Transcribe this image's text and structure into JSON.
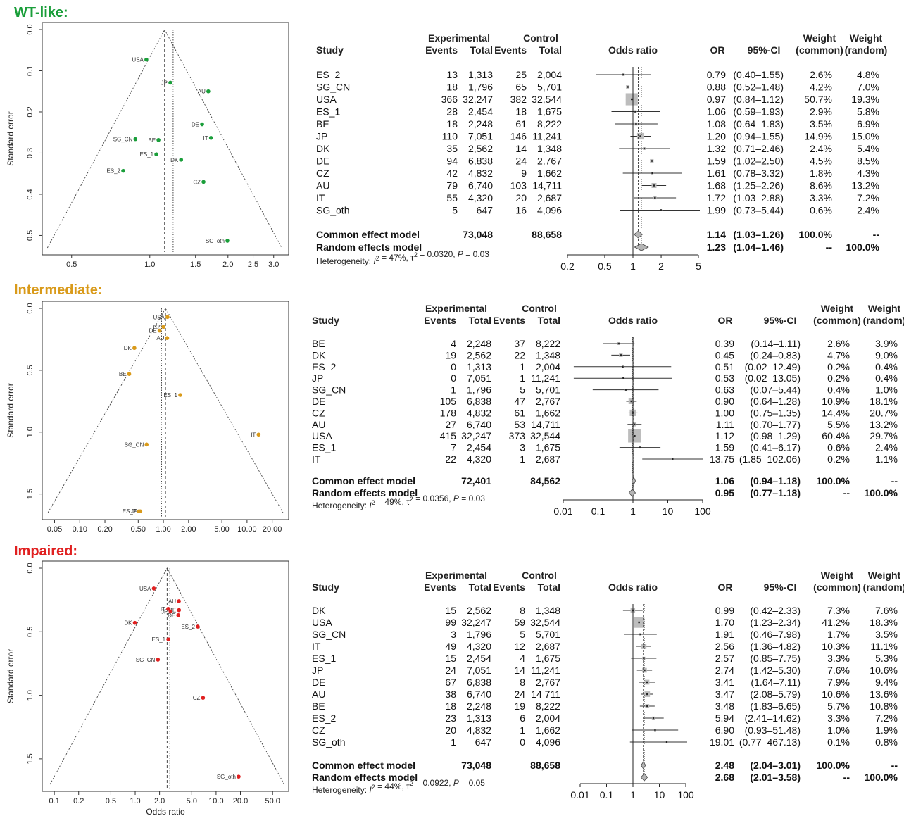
{
  "axis_labels": {
    "y": "Standard error",
    "x": "Odds ratio"
  },
  "col_labels": {
    "study": "Study",
    "experimental": "Experimental",
    "control": "Control",
    "events": "Events",
    "total": "Total",
    "odds_ratio": "Odds ratio",
    "or": "OR",
    "ci": "95%-CI",
    "weight": "Weight",
    "common": "(common)",
    "random": "(random)"
  },
  "panels": [
    {
      "title": "WT-like:",
      "color": "#1a9e3a",
      "rows": [
        [
          "ES_2",
          "13",
          "1,313",
          "25",
          "2,004",
          "0.79",
          "(0.40–1.55)",
          "2.6%",
          "4.8%"
        ],
        [
          "SG_CN",
          "18",
          "1,796",
          "65",
          "5,701",
          "0.88",
          "(0.52–1.48)",
          "4.2%",
          "7.0%"
        ],
        [
          "USA",
          "366",
          "32,247",
          "382",
          "32,544",
          "0.97",
          "(0.84–1.12)",
          "50.7%",
          "19.3%"
        ],
        [
          "ES_1",
          "28",
          "2,454",
          "18",
          "1,675",
          "1.06",
          "(0.59–1.93)",
          "2.9%",
          "5.8%"
        ],
        [
          "BE",
          "18",
          "2,248",
          "61",
          "8,222",
          "1.08",
          "(0.64–1.83)",
          "3.5%",
          "6.9%"
        ],
        [
          "JP",
          "110",
          "7,051",
          "146",
          "11,241",
          "1.20",
          "(0.94–1.55)",
          "14.9%",
          "15.0%"
        ],
        [
          "DK",
          "35",
          "2,562",
          "14",
          "1,348",
          "1.32",
          "(0.71–2.46)",
          "2.4%",
          "5.4%"
        ],
        [
          "DE",
          "94",
          "6,838",
          "24",
          "2,767",
          "1.59",
          "(1.02–2.50)",
          "4.5%",
          "8.5%"
        ],
        [
          "CZ",
          "42",
          "4,832",
          "9",
          "1,662",
          "1.61",
          "(0.78–3.32)",
          "1.8%",
          "4.3%"
        ],
        [
          "AU",
          "79",
          "6,740",
          "103",
          "14,711",
          "1.68",
          "(1.25–2.26)",
          "8.6%",
          "13.2%"
        ],
        [
          "IT",
          "55",
          "4,320",
          "20",
          "2,687",
          "1.72",
          "(1.03–2.88)",
          "3.3%",
          "7.2%"
        ],
        [
          "SG_oth",
          "5",
          "647",
          "16",
          "4,096",
          "1.99",
          "(0.73–5.44)",
          "0.6%",
          "2.4%"
        ]
      ],
      "common": [
        "Common effect model",
        "73,048",
        "88,658",
        "1.14",
        "(1.03–1.26)",
        "100.0%",
        "--"
      ],
      "random": [
        "Random effects model",
        "1.23",
        "(1.04–1.46)",
        "--",
        "100.0%"
      ],
      "heterogeneity": {
        "prefix": "Heterogeneity: ",
        "i": "I",
        "sup": "2",
        "mid": " = 47%, τ",
        "tau": " = 0.0320, ",
        "p": "P",
        "pval": " = 0.03"
      },
      "forest_ticks": [
        "0.2",
        "0.5",
        "1",
        "2",
        "5"
      ],
      "funnel_xticks": [
        "0.5",
        "1.0",
        "1.5",
        "2.0",
        "2.5",
        "3.0"
      ],
      "funnel_yticks": [
        "0.0",
        "0.1",
        "0.2",
        "0.3",
        "0.4",
        "0.5"
      ]
    },
    {
      "title": "Intermediate:",
      "color": "#d99a1a",
      "rows": [
        [
          "BE",
          "4",
          "2,248",
          "37",
          "8,222",
          "0.39",
          "(0.14–1.11)",
          "2.6%",
          "3.9%"
        ],
        [
          "DK",
          "19",
          "2,562",
          "22",
          "1,348",
          "0.45",
          "(0.24–0.83)",
          "4.7%",
          "9.0%"
        ],
        [
          "ES_2",
          "0",
          "1,313",
          "1",
          "2,004",
          "0.51",
          "(0.02–12.49)",
          "0.2%",
          "0.4%"
        ],
        [
          "JP",
          "0",
          "7,051",
          "1",
          "11,241",
          "0.53",
          "(0.02–13.05)",
          "0.2%",
          "0.4%"
        ],
        [
          "SG_CN",
          "1",
          "1,796",
          "5",
          "5,701",
          "0.63",
          "(0.07–5.44)",
          "0.4%",
          "1.0%"
        ],
        [
          "DE",
          "105",
          "6,838",
          "47",
          "2,767",
          "0.90",
          "(0.64–1.28)",
          "10.9%",
          "18.1%"
        ],
        [
          "CZ",
          "178",
          "4,832",
          "61",
          "1,662",
          "1.00",
          "(0.75–1.35)",
          "14.4%",
          "20.7%"
        ],
        [
          "AU",
          "27",
          "6,740",
          "53",
          "14,711",
          "1.11",
          "(0.70–1.77)",
          "5.5%",
          "13.2%"
        ],
        [
          "USA",
          "415",
          "32,247",
          "373",
          "32,544",
          "1.12",
          "(0.98–1.29)",
          "60.4%",
          "29.7%"
        ],
        [
          "ES_1",
          "7",
          "2,454",
          "3",
          "1,675",
          "1.59",
          "(0.41–6.17)",
          "0.6%",
          "2.4%"
        ],
        [
          "IT",
          "22",
          "4,320",
          "1",
          "2,687",
          "13.75",
          "(1.85–102.06)",
          "0.2%",
          "1.1%"
        ]
      ],
      "common": [
        "Common effect model",
        "72,401",
        "84,562",
        "1.06",
        "(0.94–1.18)",
        "100.0%",
        "--"
      ],
      "random": [
        "Random effects model",
        "0.95",
        "(0.77–1.18)",
        "--",
        "100.0%"
      ],
      "heterogeneity": {
        "prefix": "Heterogeneity: ",
        "i": "I",
        "sup": "2",
        "mid": " = 49%, τ",
        "tau": " = 0.0356, ",
        "p": "P",
        "pval": " = 0.03"
      },
      "forest_ticks": [
        "0.01",
        "0.1",
        "1",
        "10",
        "100"
      ],
      "funnel_xticks": [
        "0.05",
        "0.10",
        "0.20",
        "0.50",
        "1.00",
        "2.00",
        "5.00",
        "10.00",
        "20.00"
      ],
      "funnel_yticks": [
        "0.0",
        "0.5",
        "1.0",
        "1.5"
      ]
    },
    {
      "title": "Impaired:",
      "color": "#e02020",
      "rows": [
        [
          "DK",
          "15",
          "2,562",
          "8",
          "1,348",
          "0.99",
          "(0.42–2.33)",
          "7.3%",
          "7.6%"
        ],
        [
          "USA",
          "99",
          "32,247",
          "59",
          "32,544",
          "1.70",
          "(1.23–2.34)",
          "41.2%",
          "18.3%"
        ],
        [
          "SG_CN",
          "3",
          "1,796",
          "5",
          "5,701",
          "1.91",
          "(0.46–7.98)",
          "1.7%",
          "3.5%"
        ],
        [
          "IT",
          "49",
          "4,320",
          "12",
          "2,687",
          "2.56",
          "(1.36–4.82)",
          "10.3%",
          "11.1%"
        ],
        [
          "ES_1",
          "15",
          "2,454",
          "4",
          "1,675",
          "2.57",
          "(0.85–7.75)",
          "3.3%",
          "5.3%"
        ],
        [
          "JP",
          "24",
          "7,051",
          "14",
          "11,241",
          "2.74",
          "(1.42–5.30)",
          "7.6%",
          "10.6%"
        ],
        [
          "DE",
          "67",
          "6,838",
          "8",
          "2,767",
          "3.41",
          "(1.64–7.11)",
          "7.9%",
          "9.4%"
        ],
        [
          "AU",
          "38",
          "6,740",
          "24",
          "14 711",
          "3.47",
          "(2.08–5.79)",
          "10.6%",
          "13.6%"
        ],
        [
          "BE",
          "18",
          "2,248",
          "19",
          "8,222",
          "3.48",
          "(1.83–6.65)",
          "5.7%",
          "10.8%"
        ],
        [
          "ES_2",
          "23",
          "1,313",
          "6",
          "2,004",
          "5.94",
          "(2.41–14.62)",
          "3.3%",
          "7.2%"
        ],
        [
          "CZ",
          "20",
          "4,832",
          "1",
          "1,662",
          "6.90",
          "(0.93–51.48)",
          "1.0%",
          "1.9%"
        ],
        [
          "SG_oth",
          "1",
          "647",
          "0",
          "4,096",
          "19.01",
          "(0.77–467.13)",
          "0.1%",
          "0.8%"
        ]
      ],
      "common": [
        "Common effect model",
        "73,048",
        "88,658",
        "2.48",
        "(2.04–3.01)",
        "100.0%",
        "--"
      ],
      "random": [
        "Random effects model",
        "2.68",
        "(2.01–3.58)",
        "--",
        "100.0%"
      ],
      "heterogeneity": {
        "prefix": "Heterogeneity: ",
        "i": "I",
        "sup": "2",
        "mid": " = 44%, τ",
        "tau": " = 0.0922, ",
        "p": "P",
        "pval": " = 0.05"
      },
      "forest_ticks": [
        "0.01",
        "0.1",
        "1",
        "10",
        "100"
      ],
      "funnel_xticks": [
        "0.1",
        "0.2",
        "0.5",
        "1.0",
        "2.0",
        "5.0",
        "10.0",
        "20.0",
        "50.0"
      ],
      "funnel_yticks": [
        "0.0",
        "0.5",
        "1.0",
        "1.5"
      ]
    }
  ],
  "chart_data": [
    {
      "type": "scatter",
      "panel": "WT-like funnel plot",
      "xlabel": "",
      "ylabel": "Standard error",
      "x_scale": "log",
      "xlim": [
        0.4,
        3.3
      ],
      "ylim": [
        0.53,
        0.0
      ],
      "common_estimate": 1.14,
      "random_estimate": 1.23,
      "points": [
        {
          "label": "USA",
          "x": 0.97,
          "y": 0.073
        },
        {
          "label": "JP",
          "x": 1.2,
          "y": 0.129
        },
        {
          "label": "AU",
          "x": 1.68,
          "y": 0.15
        },
        {
          "label": "DE",
          "x": 1.59,
          "y": 0.23
        },
        {
          "label": "IT",
          "x": 1.72,
          "y": 0.263
        },
        {
          "label": "SG_CN",
          "x": 0.88,
          "y": 0.266
        },
        {
          "label": "BE",
          "x": 1.08,
          "y": 0.268
        },
        {
          "label": "ES_1",
          "x": 1.06,
          "y": 0.303
        },
        {
          "label": "DK",
          "x": 1.32,
          "y": 0.316
        },
        {
          "label": "ES_2",
          "x": 0.79,
          "y": 0.343
        },
        {
          "label": "CZ",
          "x": 1.61,
          "y": 0.37
        },
        {
          "label": "SG_oth",
          "x": 1.99,
          "y": 0.513
        }
      ]
    },
    {
      "type": "scatter",
      "panel": "Intermediate funnel plot",
      "xlabel": "",
      "ylabel": "Standard error",
      "x_scale": "log",
      "xlim": [
        0.04,
        28
      ],
      "ylim": [
        1.65,
        0.0
      ],
      "common_estimate": 1.06,
      "random_estimate": 0.95,
      "points": [
        {
          "label": "USA",
          "x": 1.12,
          "y": 0.07
        },
        {
          "label": "CZ",
          "x": 1.0,
          "y": 0.15
        },
        {
          "label": "DE",
          "x": 0.9,
          "y": 0.18
        },
        {
          "label": "AU",
          "x": 1.11,
          "y": 0.24
        },
        {
          "label": "DK",
          "x": 0.45,
          "y": 0.32
        },
        {
          "label": "BE",
          "x": 0.39,
          "y": 0.53
        },
        {
          "label": "ES_1",
          "x": 1.59,
          "y": 0.7
        },
        {
          "label": "IT",
          "x": 13.75,
          "y": 1.02
        },
        {
          "label": "SG_CN",
          "x": 0.63,
          "y": 1.1
        },
        {
          "label": "ES_2",
          "x": 0.51,
          "y": 1.64
        },
        {
          "label": "JP",
          "x": 0.53,
          "y": 1.64
        }
      ]
    },
    {
      "type": "scatter",
      "panel": "Impaired funnel plot",
      "xlabel": "Odds ratio",
      "ylabel": "Standard error",
      "x_scale": "log",
      "xlim": [
        0.08,
        70
      ],
      "ylim": [
        1.7,
        0.0
      ],
      "common_estimate": 2.48,
      "random_estimate": 2.68,
      "points": [
        {
          "label": "USA",
          "x": 1.7,
          "y": 0.16
        },
        {
          "label": "AU",
          "x": 3.47,
          "y": 0.26
        },
        {
          "label": "BE",
          "x": 3.48,
          "y": 0.33
        },
        {
          "label": "JP",
          "x": 2.74,
          "y": 0.34
        },
        {
          "label": "IT",
          "x": 2.56,
          "y": 0.32
        },
        {
          "label": "DE",
          "x": 3.41,
          "y": 0.37
        },
        {
          "label": "DK",
          "x": 0.99,
          "y": 0.43
        },
        {
          "label": "ES_2",
          "x": 5.94,
          "y": 0.46
        },
        {
          "label": "ES_1",
          "x": 2.57,
          "y": 0.56
        },
        {
          "label": "SG_CN",
          "x": 1.91,
          "y": 0.72
        },
        {
          "label": "CZ",
          "x": 6.9,
          "y": 1.02
        },
        {
          "label": "SG_oth",
          "x": 19.01,
          "y": 1.64
        }
      ]
    },
    {
      "type": "forest",
      "panel": "WT-like forest plot",
      "x_scale": "log",
      "xlim": [
        0.2,
        5
      ],
      "studies": [
        {
          "study": "ES_2",
          "or": 0.79,
          "lo": 0.4,
          "hi": 1.55,
          "w": 2.6
        },
        {
          "study": "SG_CN",
          "or": 0.88,
          "lo": 0.52,
          "hi": 1.48,
          "w": 4.2
        },
        {
          "study": "USA",
          "or": 0.97,
          "lo": 0.84,
          "hi": 1.12,
          "w": 50.7
        },
        {
          "study": "ES_1",
          "or": 1.06,
          "lo": 0.59,
          "hi": 1.93,
          "w": 2.9
        },
        {
          "study": "BE",
          "or": 1.08,
          "lo": 0.64,
          "hi": 1.83,
          "w": 3.5
        },
        {
          "study": "JP",
          "or": 1.2,
          "lo": 0.94,
          "hi": 1.55,
          "w": 14.9
        },
        {
          "study": "DK",
          "or": 1.32,
          "lo": 0.71,
          "hi": 2.46,
          "w": 2.4
        },
        {
          "study": "DE",
          "or": 1.59,
          "lo": 1.02,
          "hi": 2.5,
          "w": 4.5
        },
        {
          "study": "CZ",
          "or": 1.61,
          "lo": 0.78,
          "hi": 3.32,
          "w": 1.8
        },
        {
          "study": "AU",
          "or": 1.68,
          "lo": 1.25,
          "hi": 2.26,
          "w": 8.6
        },
        {
          "study": "IT",
          "or": 1.72,
          "lo": 1.03,
          "hi": 2.88,
          "w": 3.3
        },
        {
          "study": "SG_oth",
          "or": 1.99,
          "lo": 0.73,
          "hi": 5.44,
          "w": 0.6
        }
      ],
      "common": {
        "or": 1.14,
        "lo": 1.03,
        "hi": 1.26
      },
      "random": {
        "or": 1.23,
        "lo": 1.04,
        "hi": 1.46
      }
    },
    {
      "type": "forest",
      "panel": "Intermediate forest plot",
      "x_scale": "log",
      "xlim": [
        0.01,
        100
      ],
      "studies": [
        {
          "study": "BE",
          "or": 0.39,
          "lo": 0.14,
          "hi": 1.11,
          "w": 2.6
        },
        {
          "study": "DK",
          "or": 0.45,
          "lo": 0.24,
          "hi": 0.83,
          "w": 4.7
        },
        {
          "study": "ES_2",
          "or": 0.51,
          "lo": 0.02,
          "hi": 12.49,
          "w": 0.2
        },
        {
          "study": "JP",
          "or": 0.53,
          "lo": 0.02,
          "hi": 13.05,
          "w": 0.2
        },
        {
          "study": "SG_CN",
          "or": 0.63,
          "lo": 0.07,
          "hi": 5.44,
          "w": 0.4
        },
        {
          "study": "DE",
          "or": 0.9,
          "lo": 0.64,
          "hi": 1.28,
          "w": 10.9
        },
        {
          "study": "CZ",
          "or": 1.0,
          "lo": 0.75,
          "hi": 1.35,
          "w": 14.4
        },
        {
          "study": "AU",
          "or": 1.11,
          "lo": 0.7,
          "hi": 1.77,
          "w": 5.5
        },
        {
          "study": "USA",
          "or": 1.12,
          "lo": 0.98,
          "hi": 1.29,
          "w": 60.4
        },
        {
          "study": "ES_1",
          "or": 1.59,
          "lo": 0.41,
          "hi": 6.17,
          "w": 0.6
        },
        {
          "study": "IT",
          "or": 13.75,
          "lo": 1.85,
          "hi": 102.06,
          "w": 0.2
        }
      ],
      "common": {
        "or": 1.06,
        "lo": 0.94,
        "hi": 1.18
      },
      "random": {
        "or": 0.95,
        "lo": 0.77,
        "hi": 1.18
      }
    },
    {
      "type": "forest",
      "panel": "Impaired forest plot",
      "x_scale": "log",
      "xlim": [
        0.01,
        100
      ],
      "studies": [
        {
          "study": "DK",
          "or": 0.99,
          "lo": 0.42,
          "hi": 2.33,
          "w": 7.3
        },
        {
          "study": "USA",
          "or": 1.7,
          "lo": 1.23,
          "hi": 2.34,
          "w": 41.2
        },
        {
          "study": "SG_CN",
          "or": 1.91,
          "lo": 0.46,
          "hi": 7.98,
          "w": 1.7
        },
        {
          "study": "IT",
          "or": 2.56,
          "lo": 1.36,
          "hi": 4.82,
          "w": 10.3
        },
        {
          "study": "ES_1",
          "or": 2.57,
          "lo": 0.85,
          "hi": 7.75,
          "w": 3.3
        },
        {
          "study": "JP",
          "or": 2.74,
          "lo": 1.42,
          "hi": 5.3,
          "w": 7.6
        },
        {
          "study": "DE",
          "or": 3.41,
          "lo": 1.64,
          "hi": 7.11,
          "w": 7.9
        },
        {
          "study": "AU",
          "or": 3.47,
          "lo": 2.08,
          "hi": 5.79,
          "w": 10.6
        },
        {
          "study": "BE",
          "or": 3.48,
          "lo": 1.83,
          "hi": 6.65,
          "w": 5.7
        },
        {
          "study": "ES_2",
          "or": 5.94,
          "lo": 2.41,
          "hi": 14.62,
          "w": 3.3
        },
        {
          "study": "CZ",
          "or": 6.9,
          "lo": 0.93,
          "hi": 51.48,
          "w": 1.0
        },
        {
          "study": "SG_oth",
          "or": 19.01,
          "lo": 0.77,
          "hi": 467.13,
          "w": 0.1
        }
      ],
      "common": {
        "or": 2.48,
        "lo": 2.04,
        "hi": 3.01
      },
      "random": {
        "or": 2.68,
        "lo": 2.01,
        "hi": 3.58
      }
    }
  ]
}
